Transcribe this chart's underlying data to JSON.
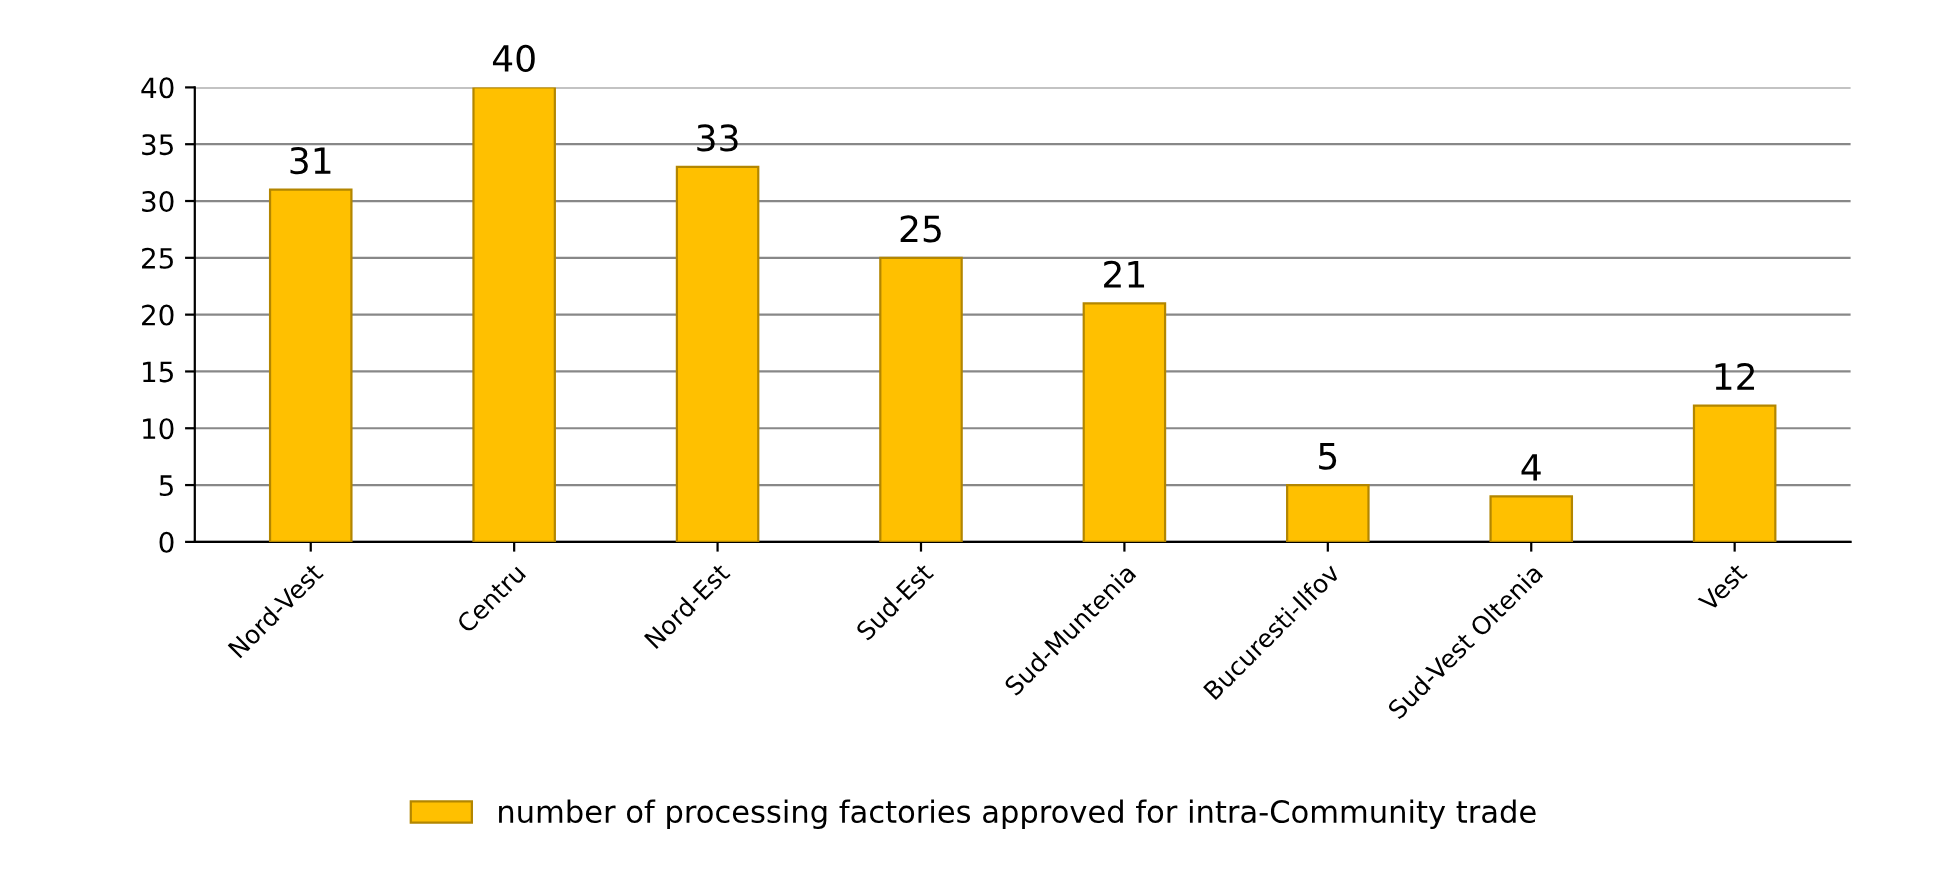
{
  "chart_data": {
    "type": "bar",
    "categories": [
      "Nord-Vest",
      "Centru",
      "Nord-Est",
      "Sud-Est",
      "Sud-Muntenia",
      "Bucuresti-Ilfov",
      "Sud-Vest Oltenia",
      "Vest"
    ],
    "series": [
      {
        "name": "number of processing factories approved for intra-Community trade",
        "color": "#ffc000",
        "values": [
          31,
          40,
          33,
          25,
          21,
          5,
          4,
          12
        ]
      }
    ],
    "ylim": [
      0,
      40
    ],
    "yticks": [
      0,
      5,
      10,
      15,
      20,
      25,
      30,
      35,
      40
    ],
    "grid": "y",
    "legend": "bottom",
    "data_labels": true
  }
}
